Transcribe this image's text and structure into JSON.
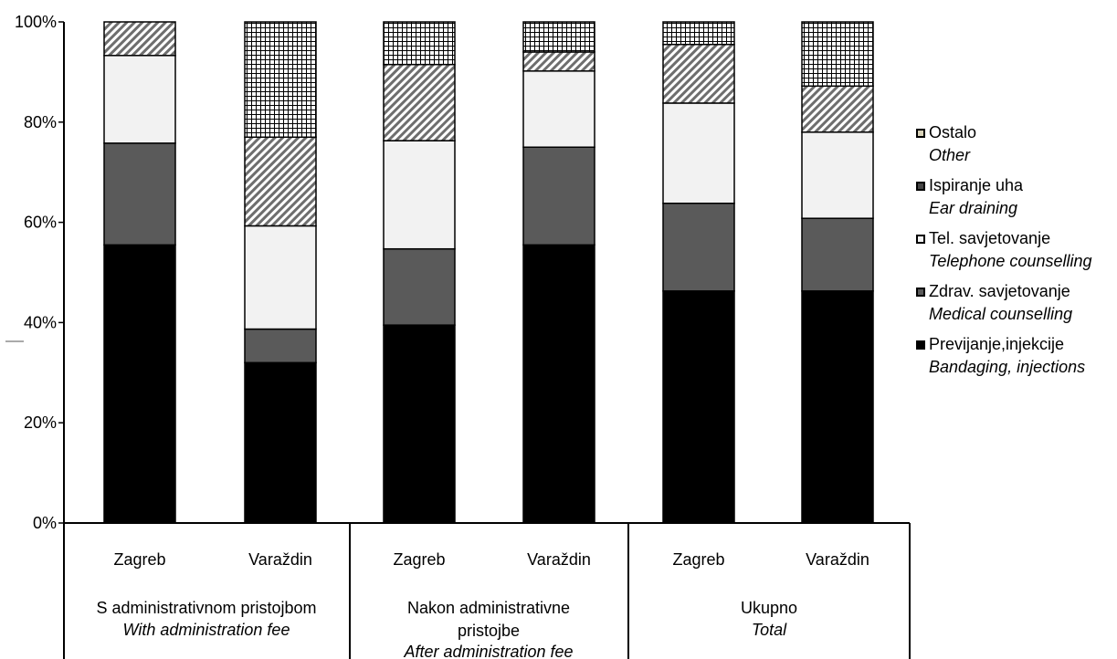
{
  "chart_data": {
    "type": "bar",
    "stacked": "percent",
    "y_ticks": [
      "0%",
      "20%",
      "40%",
      "60%",
      "80%",
      "100%"
    ],
    "ylim": [
      0,
      100
    ],
    "grid": false,
    "legend_placement": "right",
    "groups": [
      {
        "label": "S administrativnom pristojbom",
        "sublabel": "With administration fee",
        "categories": [
          "Zagreb",
          "Varaždin"
        ]
      },
      {
        "label": "Nakon administrativne pristojbe",
        "sublabel": "After administration fee",
        "categories": [
          "Zagreb",
          "Varaždin"
        ]
      },
      {
        "label": "Ukupno",
        "sublabel": "Total",
        "categories": [
          "Zagreb",
          "Varaždin"
        ]
      }
    ],
    "categories": [
      "Zagreb",
      "Varaždin",
      "Zagreb",
      "Varaždin",
      "Zagreb",
      "Varaždin"
    ],
    "series": [
      {
        "name": "Previjanje,injekcije",
        "name_en": "Bandaging, injections",
        "color": "#000000",
        "pattern": "solid",
        "values": [
          55.5,
          32,
          39.5,
          55.5,
          46.3,
          46.3
        ]
      },
      {
        "name": "Zdrav. savjetovanje",
        "name_en": "Medical counselling",
        "color": "#5a5a5a",
        "pattern": "solid",
        "values": [
          20.3,
          6.7,
          15.2,
          19.5,
          17.5,
          14.5
        ]
      },
      {
        "name": "Tel. savjetovanje",
        "name_en": "Telephone counselling",
        "color": "#f2f2f2",
        "pattern": "solid",
        "values": [
          17.5,
          20.6,
          21.6,
          15.2,
          20.0,
          17.2
        ]
      },
      {
        "name": "Ispiranje uha",
        "name_en": "Ear draining",
        "color": "#b0a898",
        "pattern": "diagonal",
        "values": [
          6.7,
          17.7,
          15.2,
          3.8,
          11.7,
          9.2
        ]
      },
      {
        "name": "Ostalo",
        "name_en": "Other",
        "color": "#ffffff",
        "pattern": "grid",
        "values": [
          0,
          23.0,
          8.5,
          6.0,
          4.5,
          12.8
        ]
      }
    ]
  }
}
